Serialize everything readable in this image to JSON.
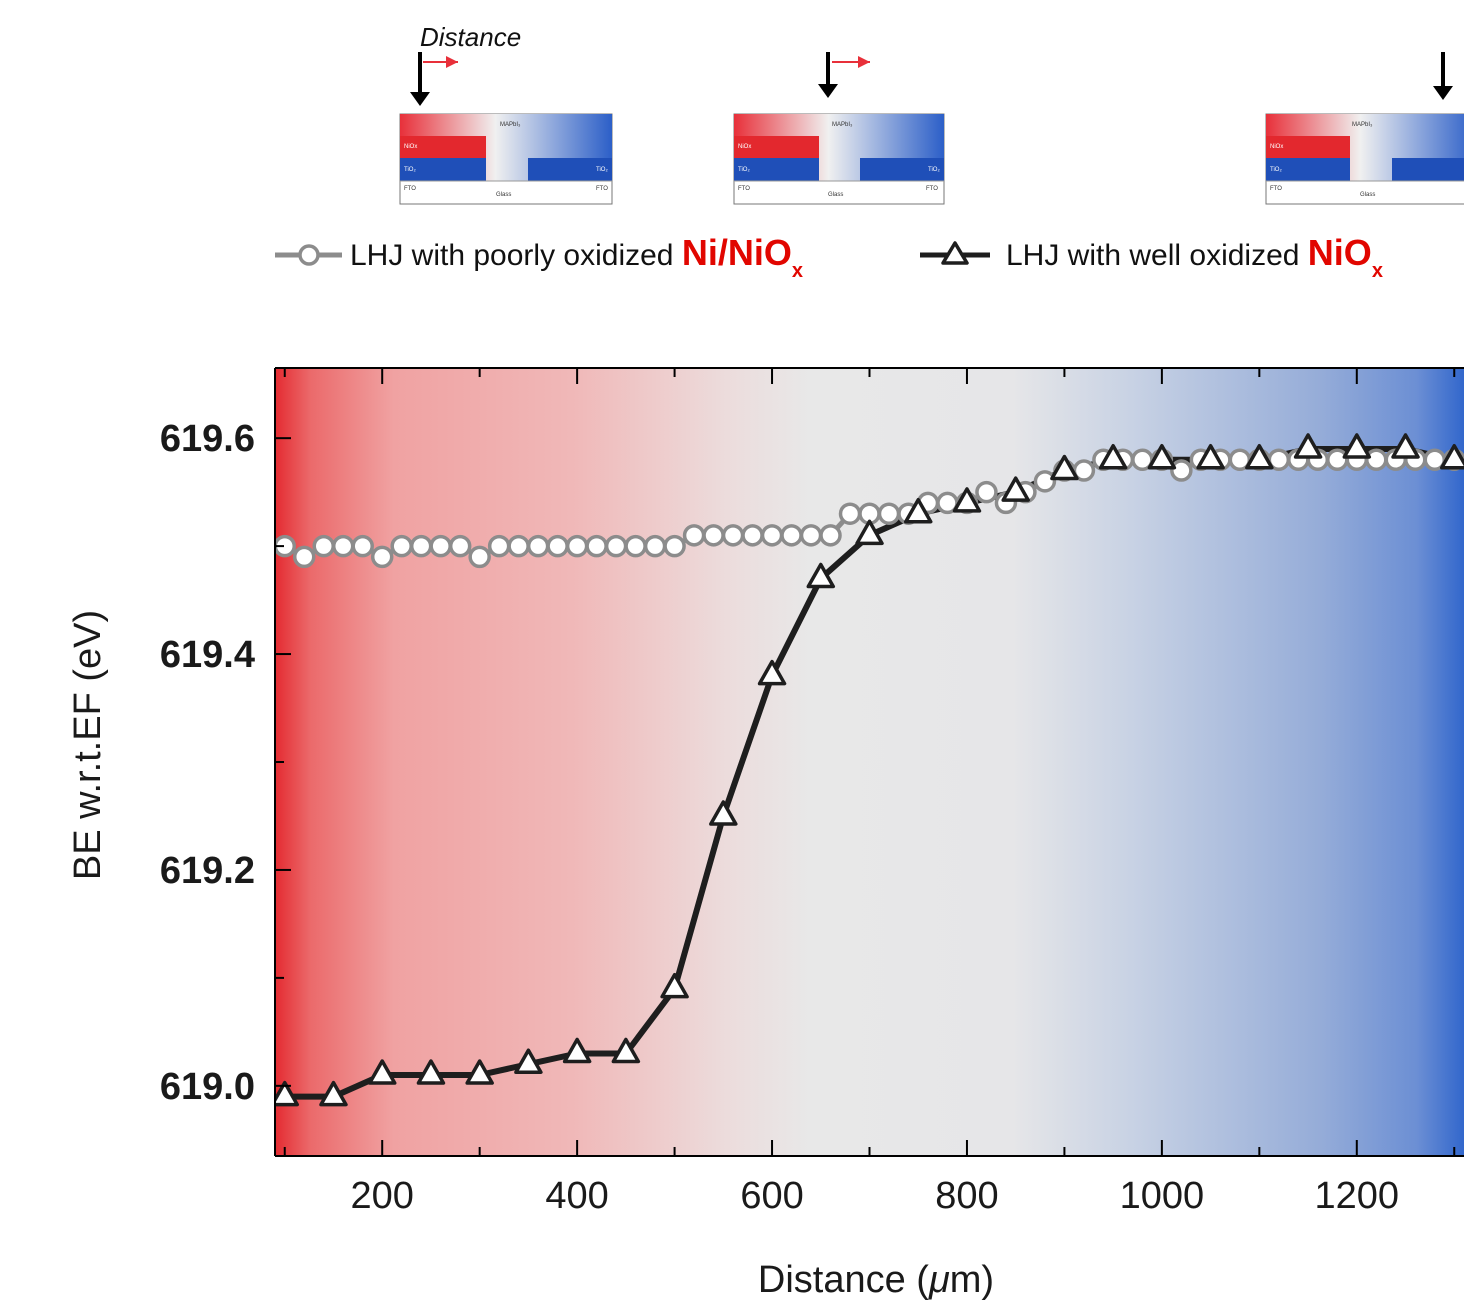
{
  "schematic": {
    "distance_label": "Distance",
    "layers": {
      "top": "MAPbI₃",
      "left_mid": "NiOx",
      "left_bottom": "TiO₂",
      "right_bottom": "TiO₂",
      "substrate_left": "FTO",
      "substrate_mid": "Glass",
      "substrate_right": "FTO"
    }
  },
  "legend": {
    "series1_prefix": "LHJ with poorly oxidized ",
    "series1_red": "Ni/NiO",
    "series1_sub": "x",
    "series2_prefix": "LHJ with well oxidized ",
    "series2_red": "NiO",
    "series2_sub": "x"
  },
  "colors": {
    "red": "#e8303a",
    "blue": "#3a6fd0",
    "mid_gray": "#e8e8e8",
    "series1": "#8c8c8c",
    "series2": "#1e1e1e"
  },
  "chart_data": {
    "type": "line",
    "xlabel_pre": "Distance (",
    "xlabel_mu": "μ",
    "xlabel_post": "m)",
    "ylabel": "BE w.r.t.EF (eV)",
    "xlim": [
      90,
      1310
    ],
    "ylim": [
      618.935,
      619.665
    ],
    "xticks": [
      200,
      400,
      600,
      800,
      1000,
      1200
    ],
    "xtick_labels": [
      "200",
      "400",
      "600",
      "800",
      "1000",
      "1200"
    ],
    "xminor": [
      100,
      300,
      500,
      700,
      900,
      1100,
      1300
    ],
    "yticks": [
      619.0,
      619.2,
      619.4,
      619.6
    ],
    "ytick_labels": [
      "619.0",
      "619.2",
      "619.4",
      "619.6"
    ],
    "yminor": [
      619.1,
      619.3,
      619.5
    ],
    "series": [
      {
        "name": "LHJ with poorly oxidized Ni/NiOx",
        "marker": "circle",
        "x": [
          100,
          120,
          140,
          160,
          180,
          200,
          220,
          240,
          260,
          280,
          300,
          320,
          340,
          360,
          380,
          400,
          420,
          440,
          460,
          480,
          500,
          520,
          540,
          560,
          580,
          600,
          620,
          640,
          660,
          680,
          700,
          720,
          740,
          760,
          780,
          800,
          820,
          840,
          860,
          880,
          900,
          920,
          940,
          960,
          980,
          1000,
          1020,
          1040,
          1060,
          1080,
          1100,
          1120,
          1140,
          1160,
          1180,
          1200,
          1220,
          1240,
          1260,
          1280,
          1300
        ],
        "y": [
          619.5,
          619.49,
          619.5,
          619.5,
          619.5,
          619.49,
          619.5,
          619.5,
          619.5,
          619.5,
          619.49,
          619.5,
          619.5,
          619.5,
          619.5,
          619.5,
          619.5,
          619.5,
          619.5,
          619.5,
          619.5,
          619.51,
          619.51,
          619.51,
          619.51,
          619.51,
          619.51,
          619.51,
          619.51,
          619.53,
          619.53,
          619.53,
          619.53,
          619.54,
          619.54,
          619.54,
          619.55,
          619.54,
          619.55,
          619.56,
          619.57,
          619.57,
          619.58,
          619.58,
          619.58,
          619.58,
          619.57,
          619.58,
          619.58,
          619.58,
          619.58,
          619.58,
          619.58,
          619.58,
          619.58,
          619.58,
          619.58,
          619.58,
          619.58,
          619.58,
          619.58
        ]
      },
      {
        "name": "LHJ with well oxidized NiOx",
        "marker": "triangle",
        "x": [
          100,
          150,
          200,
          250,
          300,
          350,
          400,
          450,
          500,
          550,
          600,
          650,
          700,
          750,
          800,
          850,
          900,
          950,
          1000,
          1050,
          1100,
          1150,
          1200,
          1250,
          1300
        ],
        "y": [
          618.99,
          618.99,
          619.01,
          619.01,
          619.01,
          619.02,
          619.03,
          619.03,
          619.09,
          619.25,
          619.38,
          619.47,
          619.51,
          619.53,
          619.54,
          619.55,
          619.57,
          619.58,
          619.58,
          619.58,
          619.58,
          619.59,
          619.59,
          619.59,
          619.58
        ]
      }
    ]
  }
}
